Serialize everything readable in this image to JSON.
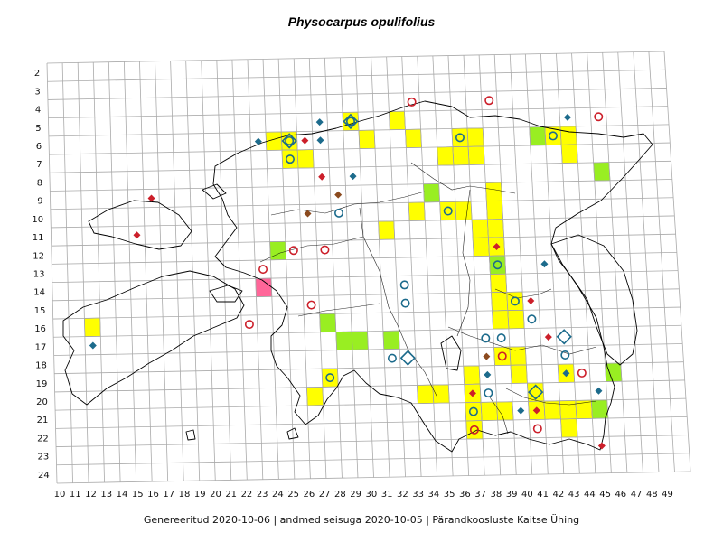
{
  "map": {
    "title": "Physocarpus opulifolius",
    "footer": "Genereeritud 2020-10-06  |  andmed seisuga 2020-10-05  |  Pärandkoosluste Kaitse Ühing",
    "colors": {
      "grid": "#aaaaaa",
      "coast": "#000000",
      "yellow": "#ffff00",
      "green": "#99ee22",
      "pink": "#ff6699",
      "blue": "#1c6b8c",
      "red": "#cc1f2a",
      "brown": "#8b4a1e"
    },
    "columns": [
      "10",
      "11",
      "12",
      "13",
      "14",
      "15",
      "16",
      "17",
      "18",
      "19",
      "20",
      "21",
      "22",
      "23",
      "24",
      "25",
      "26",
      "27",
      "28",
      "29",
      "30",
      "31",
      "32",
      "33",
      "34",
      "35",
      "36",
      "37",
      "38",
      "39",
      "40",
      "41",
      "42",
      "43",
      "44",
      "45",
      "46",
      "47",
      "48",
      "49"
    ],
    "rows": [
      "2",
      "3",
      "4",
      "5",
      "6",
      "7",
      "8",
      "9",
      "10",
      "11",
      "12",
      "13",
      "14",
      "15",
      "16",
      "17",
      "18",
      "19",
      "20",
      "21",
      "22",
      "23",
      "24"
    ],
    "cells_yellow": [
      [
        24,
        6
      ],
      [
        25,
        6
      ],
      [
        25,
        7
      ],
      [
        26,
        7
      ],
      [
        29,
        5
      ],
      [
        30,
        6
      ],
      [
        32,
        5
      ],
      [
        33,
        6
      ],
      [
        36,
        6
      ],
      [
        37,
        6
      ],
      [
        37,
        7
      ],
      [
        36,
        7
      ],
      [
        35,
        7
      ],
      [
        33,
        10
      ],
      [
        35,
        10
      ],
      [
        36,
        10
      ],
      [
        37,
        11
      ],
      [
        37,
        12
      ],
      [
        38,
        9
      ],
      [
        38,
        10
      ],
      [
        38,
        11
      ],
      [
        38,
        12
      ],
      [
        38,
        13
      ],
      [
        38,
        14
      ],
      [
        38,
        15
      ],
      [
        39,
        15
      ],
      [
        39,
        16
      ],
      [
        38,
        16
      ],
      [
        31,
        11
      ],
      [
        42,
        6
      ],
      [
        43,
        6
      ],
      [
        43,
        7
      ],
      [
        12,
        16
      ],
      [
        27,
        19
      ],
      [
        26,
        20
      ],
      [
        33,
        20
      ],
      [
        34,
        20
      ],
      [
        36,
        19
      ],
      [
        36,
        20
      ],
      [
        36,
        21
      ],
      [
        36,
        22
      ],
      [
        37,
        21
      ],
      [
        38,
        21
      ],
      [
        38,
        18
      ],
      [
        39,
        18
      ],
      [
        39,
        19
      ],
      [
        40,
        20
      ],
      [
        40,
        21
      ],
      [
        41,
        21
      ],
      [
        42,
        21
      ],
      [
        43,
        21
      ],
      [
        42,
        22
      ],
      [
        42,
        19
      ]
    ],
    "cells_green": [
      [
        41,
        6
      ],
      [
        45,
        8
      ],
      [
        34,
        9
      ],
      [
        24,
        12
      ],
      [
        38,
        13
      ],
      [
        27,
        16
      ],
      [
        28,
        17
      ],
      [
        29,
        17
      ],
      [
        31,
        17
      ],
      [
        45,
        19
      ],
      [
        44,
        21
      ]
    ],
    "cells_pink": [
      [
        23,
        14
      ]
    ],
    "symbols": [
      {
        "type": "circle",
        "color": "blue",
        "col": 25,
        "row": 6
      },
      {
        "type": "circle",
        "color": "blue",
        "col": 25,
        "row": 7
      },
      {
        "type": "circle",
        "color": "blue",
        "col": 29,
        "row": 5
      },
      {
        "type": "circle",
        "color": "blue",
        "col": 36,
        "row": 6
      },
      {
        "type": "circle",
        "color": "blue",
        "col": 42,
        "row": 6
      },
      {
        "type": "circle",
        "color": "blue",
        "col": 28,
        "row": 10
      },
      {
        "type": "circle",
        "color": "blue",
        "col": 35,
        "row": 10
      },
      {
        "type": "circle",
        "color": "blue",
        "col": 38,
        "row": 13
      },
      {
        "type": "circle",
        "color": "blue",
        "col": 32,
        "row": 14
      },
      {
        "type": "circle",
        "color": "blue",
        "col": 32,
        "row": 15
      },
      {
        "type": "circle",
        "color": "blue",
        "col": 39,
        "row": 15
      },
      {
        "type": "circle",
        "color": "blue",
        "col": 40,
        "row": 16
      },
      {
        "type": "circle",
        "color": "blue",
        "col": 37,
        "row": 17
      },
      {
        "type": "circle",
        "color": "blue",
        "col": 38,
        "row": 17
      },
      {
        "type": "circle",
        "color": "blue",
        "col": 31,
        "row": 18
      },
      {
        "type": "circle",
        "color": "blue",
        "col": 42,
        "row": 18
      },
      {
        "type": "circle",
        "color": "blue",
        "col": 27,
        "row": 19
      },
      {
        "type": "circle",
        "color": "blue",
        "col": 37,
        "row": 20
      },
      {
        "type": "circle",
        "color": "blue",
        "col": 36,
        "row": 21
      },
      {
        "type": "circle",
        "color": "red",
        "col": 33,
        "row": 4
      },
      {
        "type": "circle",
        "color": "red",
        "col": 38,
        "row": 4
      },
      {
        "type": "circle",
        "color": "red",
        "col": 45,
        "row": 5
      },
      {
        "type": "circle",
        "color": "red",
        "col": 23,
        "row": 13
      },
      {
        "type": "circle",
        "color": "red",
        "col": 25,
        "row": 12
      },
      {
        "type": "circle",
        "color": "red",
        "col": 27,
        "row": 12
      },
      {
        "type": "circle",
        "color": "red",
        "col": 26,
        "row": 15
      },
      {
        "type": "circle",
        "color": "red",
        "col": 22,
        "row": 16
      },
      {
        "type": "circle",
        "color": "red",
        "col": 38,
        "row": 18
      },
      {
        "type": "circle",
        "color": "red",
        "col": 43,
        "row": 19
      },
      {
        "type": "circle",
        "color": "red",
        "col": 40,
        "row": 22
      },
      {
        "type": "circle",
        "color": "red",
        "col": 36,
        "row": 22
      },
      {
        "type": "diamond",
        "color": "blue",
        "col": 27,
        "row": 5
      },
      {
        "type": "diamond",
        "color": "blue",
        "col": 43,
        "row": 5
      },
      {
        "type": "diamond",
        "color": "blue",
        "col": 23,
        "row": 6
      },
      {
        "type": "diamond",
        "color": "blue",
        "col": 27,
        "row": 6
      },
      {
        "type": "diamond",
        "color": "blue",
        "col": 29,
        "row": 8
      },
      {
        "type": "diamond",
        "color": "blue",
        "col": 41,
        "row": 13
      },
      {
        "type": "diamond",
        "color": "blue",
        "col": 12,
        "row": 17
      },
      {
        "type": "diamond",
        "color": "blue",
        "col": 37,
        "row": 19
      },
      {
        "type": "diamond",
        "color": "blue",
        "col": 42,
        "row": 19
      },
      {
        "type": "diamond",
        "color": "blue",
        "col": 44,
        "row": 20
      },
      {
        "type": "diamond",
        "color": "blue",
        "col": 39,
        "row": 21
      },
      {
        "type": "diamond",
        "color": "red",
        "col": 26,
        "row": 6
      },
      {
        "type": "diamond",
        "color": "red",
        "col": 27,
        "row": 8
      },
      {
        "type": "diamond",
        "color": "red",
        "col": 16,
        "row": 9
      },
      {
        "type": "diamond",
        "color": "red",
        "col": 15,
        "row": 11
      },
      {
        "type": "diamond",
        "color": "red",
        "col": 38,
        "row": 12
      },
      {
        "type": "diamond",
        "color": "red",
        "col": 40,
        "row": 15
      },
      {
        "type": "diamond",
        "color": "red",
        "col": 41,
        "row": 17
      },
      {
        "type": "diamond",
        "color": "red",
        "col": 36,
        "row": 20
      },
      {
        "type": "diamond",
        "color": "red",
        "col": 40,
        "row": 21
      },
      {
        "type": "diamond",
        "color": "red",
        "col": 44,
        "row": 23
      },
      {
        "type": "diamond",
        "color": "brown",
        "col": 28,
        "row": 9
      },
      {
        "type": "diamond",
        "color": "brown",
        "col": 26,
        "row": 10
      },
      {
        "type": "diamond",
        "color": "brown",
        "col": 37,
        "row": 18
      },
      {
        "type": "diamond_ring",
        "color": "blue",
        "col": 25,
        "row": 6
      },
      {
        "type": "diamond_ring",
        "color": "blue",
        "col": 29,
        "row": 5
      },
      {
        "type": "diamond_ring",
        "color": "blue",
        "col": 32,
        "row": 18
      },
      {
        "type": "diamond_ring",
        "color": "blue",
        "col": 40,
        "row": 20
      },
      {
        "type": "diamond_ring",
        "color": "blue",
        "col": 42,
        "row": 17
      }
    ]
  }
}
